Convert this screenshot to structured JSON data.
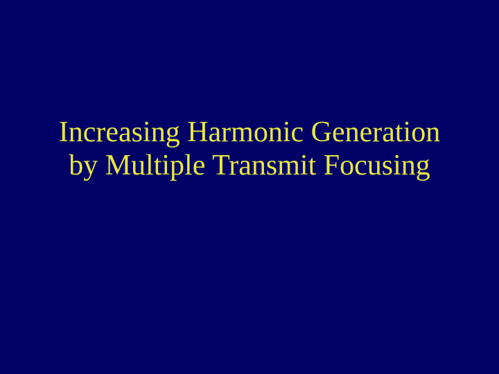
{
  "slide": {
    "title_line1": "Increasing Harmonic Generation",
    "title_line2": "by Multiple Transmit Focusing",
    "background_color": "#000066",
    "text_color": "#e8e840",
    "font_family": "Times New Roman",
    "title_fontsize": 42
  }
}
